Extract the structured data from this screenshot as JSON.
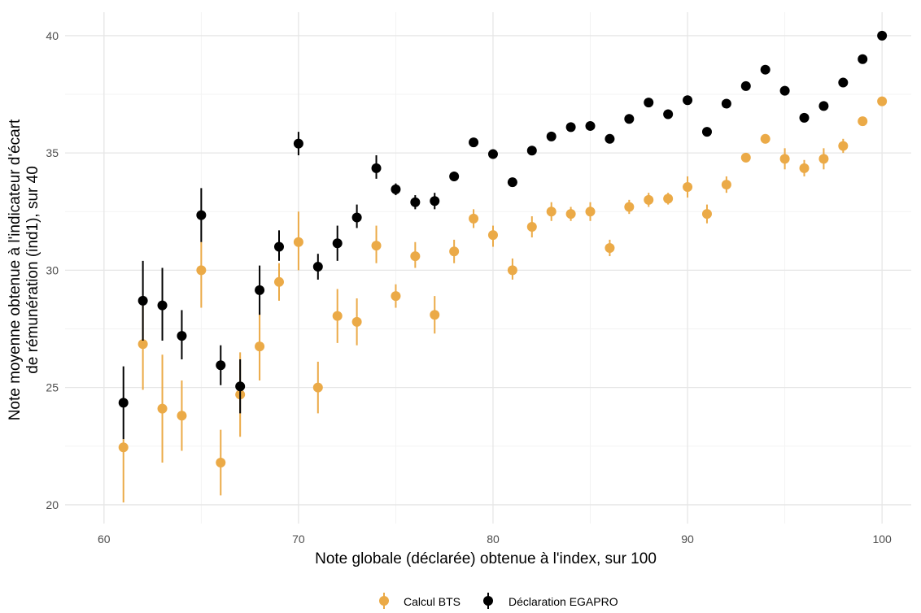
{
  "chart_data": {
    "type": "scatter",
    "title": "",
    "xlabel": "Note globale (déclarée) obtenue à l'index, sur 100",
    "ylabel_lines": [
      "Note moyenne obtenue à l'indicateur d'écart",
      "de rémunération (ind1), sur 40"
    ],
    "xlim": [
      58,
      101.5
    ],
    "ylim": [
      19.2,
      41
    ],
    "x_ticks": [
      60,
      70,
      80,
      90,
      100
    ],
    "y_ticks": [
      20,
      25,
      30,
      35,
      40
    ],
    "grid": true,
    "legend_position": "bottom",
    "series": [
      {
        "name": "Calcul BTS",
        "color": "#EBAA47",
        "points": [
          {
            "x": 61,
            "y": 22.45,
            "lo": 20.1,
            "hi": 22.8
          },
          {
            "x": 62,
            "y": 26.85,
            "lo": 24.9,
            "hi": 28.8
          },
          {
            "x": 63,
            "y": 24.1,
            "lo": 21.8,
            "hi": 26.4
          },
          {
            "x": 64,
            "y": 23.8,
            "lo": 22.3,
            "hi": 25.3
          },
          {
            "x": 65,
            "y": 30.0,
            "lo": 28.4,
            "hi": 31.2
          },
          {
            "x": 66,
            "y": 21.8,
            "lo": 20.4,
            "hi": 23.2
          },
          {
            "x": 67,
            "y": 24.7,
            "lo": 22.9,
            "hi": 26.5
          },
          {
            "x": 68,
            "y": 26.75,
            "lo": 25.3,
            "hi": 28.2
          },
          {
            "x": 69,
            "y": 29.5,
            "lo": 28.7,
            "hi": 30.3
          },
          {
            "x": 70,
            "y": 31.2,
            "lo": 30.0,
            "hi": 32.5
          },
          {
            "x": 71,
            "y": 25.0,
            "lo": 23.9,
            "hi": 26.1
          },
          {
            "x": 72,
            "y": 28.05,
            "lo": 26.9,
            "hi": 29.2
          },
          {
            "x": 73,
            "y": 27.8,
            "lo": 26.8,
            "hi": 28.8
          },
          {
            "x": 74,
            "y": 31.05,
            "lo": 30.3,
            "hi": 31.9
          },
          {
            "x": 75,
            "y": 28.9,
            "lo": 28.4,
            "hi": 29.4
          },
          {
            "x": 76,
            "y": 30.6,
            "lo": 30.1,
            "hi": 31.2
          },
          {
            "x": 77,
            "y": 28.1,
            "lo": 27.3,
            "hi": 28.9
          },
          {
            "x": 78,
            "y": 30.8,
            "lo": 30.3,
            "hi": 31.3
          },
          {
            "x": 79,
            "y": 32.2,
            "lo": 31.8,
            "hi": 32.6
          },
          {
            "x": 80,
            "y": 31.5,
            "lo": 31.0,
            "hi": 31.9
          },
          {
            "x": 81,
            "y": 30.0,
            "lo": 29.6,
            "hi": 30.5
          },
          {
            "x": 82,
            "y": 31.85,
            "lo": 31.4,
            "hi": 32.3
          },
          {
            "x": 83,
            "y": 32.5,
            "lo": 32.1,
            "hi": 32.9
          },
          {
            "x": 84,
            "y": 32.4,
            "lo": 32.1,
            "hi": 32.7
          },
          {
            "x": 85,
            "y": 32.5,
            "lo": 32.1,
            "hi": 32.9
          },
          {
            "x": 86,
            "y": 30.95,
            "lo": 30.6,
            "hi": 31.3
          },
          {
            "x": 87,
            "y": 32.7,
            "lo": 32.4,
            "hi": 33.0
          },
          {
            "x": 88,
            "y": 33.0,
            "lo": 32.7,
            "hi": 33.3
          },
          {
            "x": 89,
            "y": 33.05,
            "lo": 32.8,
            "hi": 33.3
          },
          {
            "x": 90,
            "y": 33.55,
            "lo": 33.1,
            "hi": 34.0
          },
          {
            "x": 91,
            "y": 32.4,
            "lo": 32.0,
            "hi": 32.8
          },
          {
            "x": 92,
            "y": 33.65,
            "lo": 33.3,
            "hi": 34.0
          },
          {
            "x": 93,
            "y": 34.8,
            "lo": 34.6,
            "hi": 35.0
          },
          {
            "x": 94,
            "y": 35.6,
            "lo": 35.4,
            "hi": 35.8
          },
          {
            "x": 95,
            "y": 34.75,
            "lo": 34.3,
            "hi": 35.2
          },
          {
            "x": 96,
            "y": 34.35,
            "lo": 34.0,
            "hi": 34.7
          },
          {
            "x": 97,
            "y": 34.75,
            "lo": 34.3,
            "hi": 35.2
          },
          {
            "x": 98,
            "y": 35.3,
            "lo": 35.0,
            "hi": 35.6
          },
          {
            "x": 99,
            "y": 36.35,
            "lo": 36.2,
            "hi": 36.5
          },
          {
            "x": 100,
            "y": 37.2,
            "lo": 37.1,
            "hi": 37.3
          }
        ]
      },
      {
        "name": "Déclaration EGAPRO",
        "color": "#000000",
        "points": [
          {
            "x": 61,
            "y": 24.35,
            "lo": 22.8,
            "hi": 25.9
          },
          {
            "x": 62,
            "y": 28.7,
            "lo": 27.0,
            "hi": 30.4
          },
          {
            "x": 63,
            "y": 28.5,
            "lo": 27.0,
            "hi": 30.1
          },
          {
            "x": 64,
            "y": 27.2,
            "lo": 26.2,
            "hi": 28.3
          },
          {
            "x": 65,
            "y": 32.35,
            "lo": 31.2,
            "hi": 33.5
          },
          {
            "x": 66,
            "y": 25.95,
            "lo": 25.1,
            "hi": 26.8
          },
          {
            "x": 67,
            "y": 25.05,
            "lo": 23.9,
            "hi": 26.2
          },
          {
            "x": 68,
            "y": 29.15,
            "lo": 28.1,
            "hi": 30.2
          },
          {
            "x": 69,
            "y": 31.0,
            "lo": 30.4,
            "hi": 31.7
          },
          {
            "x": 70,
            "y": 35.4,
            "lo": 34.9,
            "hi": 35.9
          },
          {
            "x": 71,
            "y": 30.15,
            "lo": 29.6,
            "hi": 30.7
          },
          {
            "x": 72,
            "y": 31.15,
            "lo": 30.4,
            "hi": 31.9
          },
          {
            "x": 73,
            "y": 32.25,
            "lo": 31.8,
            "hi": 32.8
          },
          {
            "x": 74,
            "y": 34.35,
            "lo": 33.9,
            "hi": 34.9
          },
          {
            "x": 75,
            "y": 33.45,
            "lo": 33.2,
            "hi": 33.7
          },
          {
            "x": 76,
            "y": 32.9,
            "lo": 32.6,
            "hi": 33.2
          },
          {
            "x": 77,
            "y": 32.95,
            "lo": 32.6,
            "hi": 33.3
          },
          {
            "x": 78,
            "y": 34.0,
            "lo": 33.8,
            "hi": 34.2
          },
          {
            "x": 79,
            "y": 35.45,
            "lo": 35.3,
            "hi": 35.6
          },
          {
            "x": 80,
            "y": 34.95,
            "lo": 34.8,
            "hi": 35.1
          },
          {
            "x": 81,
            "y": 33.75,
            "lo": 33.6,
            "hi": 33.9
          },
          {
            "x": 82,
            "y": 35.1,
            "lo": 35.0,
            "hi": 35.2
          },
          {
            "x": 83,
            "y": 35.7,
            "lo": 35.6,
            "hi": 35.8
          },
          {
            "x": 84,
            "y": 36.1,
            "lo": 36.0,
            "hi": 36.2
          },
          {
            "x": 85,
            "y": 36.15,
            "lo": 36.05,
            "hi": 36.25
          },
          {
            "x": 86,
            "y": 35.6,
            "lo": 35.5,
            "hi": 35.7
          },
          {
            "x": 87,
            "y": 36.45,
            "lo": 36.35,
            "hi": 36.55
          },
          {
            "x": 88,
            "y": 37.15,
            "lo": 37.05,
            "hi": 37.25
          },
          {
            "x": 89,
            "y": 36.65,
            "lo": 36.55,
            "hi": 36.75
          },
          {
            "x": 90,
            "y": 37.25,
            "lo": 37.15,
            "hi": 37.35
          },
          {
            "x": 91,
            "y": 35.9,
            "lo": 35.8,
            "hi": 36.0
          },
          {
            "x": 92,
            "y": 37.1,
            "lo": 37.0,
            "hi": 37.2
          },
          {
            "x": 93,
            "y": 37.85,
            "lo": 37.75,
            "hi": 37.95
          },
          {
            "x": 94,
            "y": 38.55,
            "lo": 38.45,
            "hi": 38.65
          },
          {
            "x": 95,
            "y": 37.65,
            "lo": 37.55,
            "hi": 37.75
          },
          {
            "x": 96,
            "y": 36.5,
            "lo": 36.4,
            "hi": 36.6
          },
          {
            "x": 97,
            "y": 37.0,
            "lo": 36.9,
            "hi": 37.1
          },
          {
            "x": 98,
            "y": 38.0,
            "lo": 37.9,
            "hi": 38.1
          },
          {
            "x": 99,
            "y": 39.0,
            "lo": 38.9,
            "hi": 39.1
          },
          {
            "x": 100,
            "y": 40.0,
            "lo": 39.9,
            "hi": 40.1
          }
        ]
      }
    ]
  }
}
